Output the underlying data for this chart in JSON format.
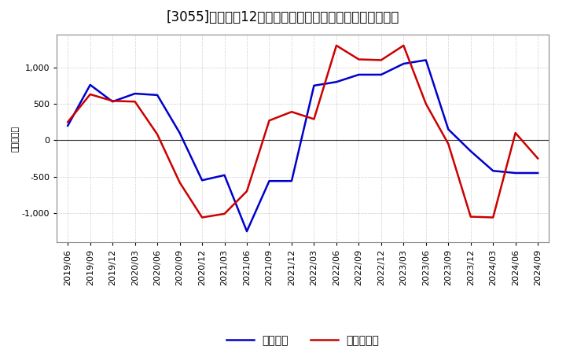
{
  "title": "[3055]　利益の12か月移動合計の対前年同期増減額の推移",
  "ylabel": "（百万円）",
  "x_labels": [
    "2019/06",
    "2019/09",
    "2019/12",
    "2020/03",
    "2020/06",
    "2020/09",
    "2020/12",
    "2021/03",
    "2021/06",
    "2021/09",
    "2021/12",
    "2022/03",
    "2022/06",
    "2022/09",
    "2022/12",
    "2023/03",
    "2023/06",
    "2023/09",
    "2023/12",
    "2024/03",
    "2024/06",
    "2024/09"
  ],
  "blue_data": {
    "label": "経常利益",
    "color": "#0000cc",
    "values": [
      200,
      760,
      530,
      640,
      620,
      100,
      -550,
      -480,
      -1250,
      -560,
      -560,
      750,
      800,
      900,
      900,
      1050,
      1100,
      150,
      -150,
      -420,
      -450,
      -450
    ]
  },
  "red_data": {
    "label": "当期純利益",
    "color": "#cc0000",
    "values": [
      250,
      630,
      540,
      530,
      80,
      -580,
      -1060,
      -1010,
      -700,
      270,
      390,
      290,
      1300,
      1110,
      1100,
      1300,
      500,
      -50,
      -1050,
      -1060,
      100,
      -250
    ]
  },
  "ylim": [
    -1400,
    1450
  ],
  "yticks": [
    -1000,
    -500,
    0,
    500,
    1000
  ],
  "background_color": "#ffffff",
  "grid_color": "#aaaaaa",
  "title_fontsize": 12,
  "legend_fontsize": 10,
  "axis_label_fontsize": 8
}
